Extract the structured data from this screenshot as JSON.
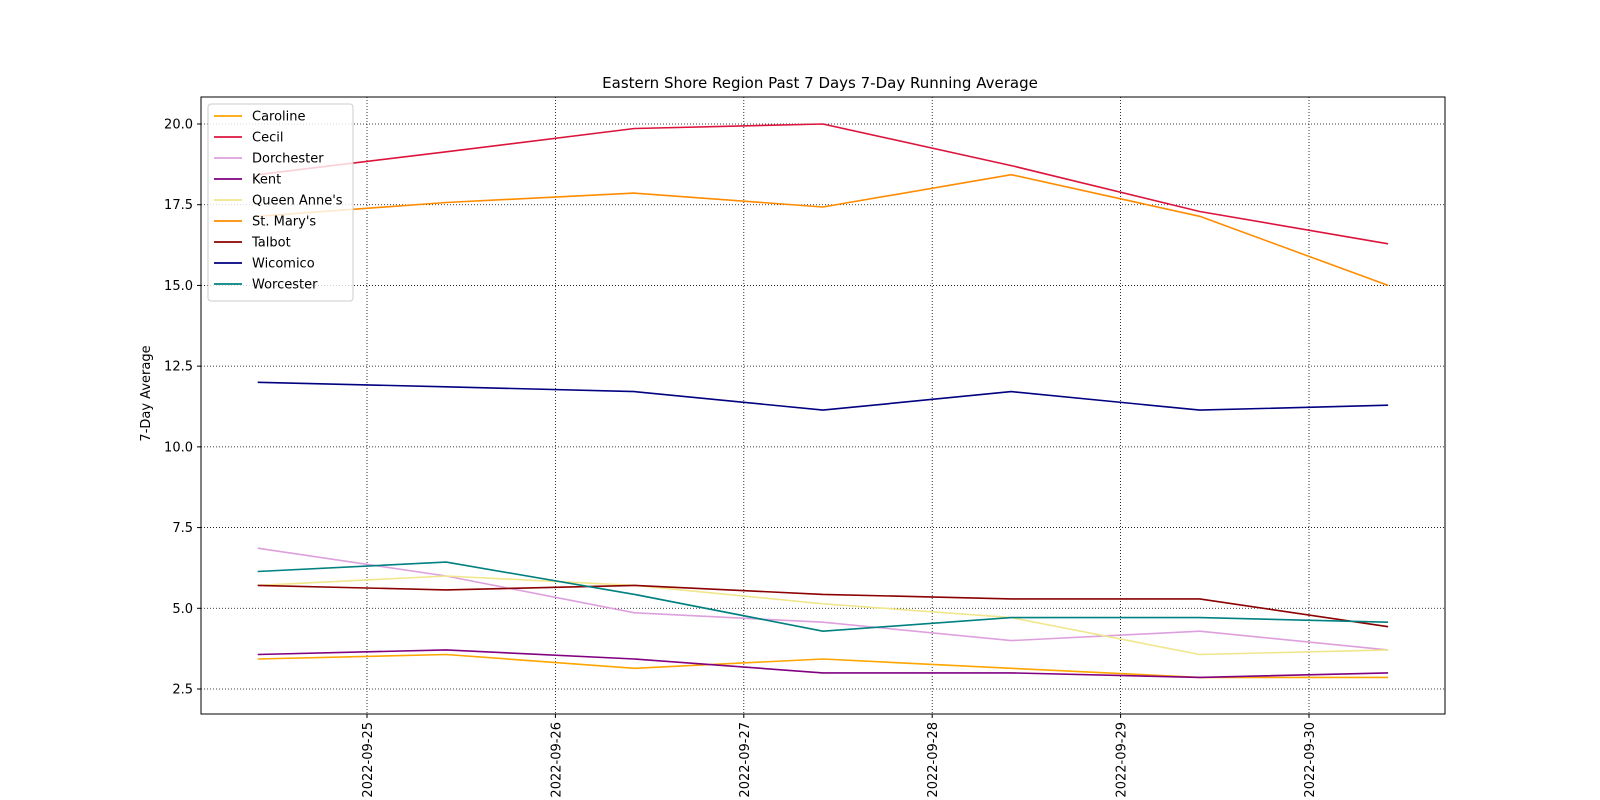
{
  "chart_data": {
    "type": "line",
    "title": "Eastern Shore Region Past 7 Days 7-Day Running Average",
    "xlabel": "",
    "ylabel": "7-Day Average",
    "x": [
      "2022-09-24",
      "2022-09-25",
      "2022-09-26",
      "2022-09-27",
      "2022-09-28",
      "2022-09-29",
      "2022-09-30",
      "2022-10-01"
    ],
    "x_ticks": [
      "2022-09-25",
      "2022-09-26",
      "2022-09-27",
      "2022-09-28",
      "2022-09-29",
      "2022-09-30"
    ],
    "y_ticks": [
      "2.5",
      "5.0",
      "7.5",
      "10.0",
      "12.5",
      "15.0",
      "17.5",
      "20.0"
    ],
    "ylim": [
      1.7,
      20.9
    ],
    "grid": true,
    "legend_position": "upper-left",
    "series": [
      {
        "name": "Caroline",
        "color": "#ffa500",
        "values": [
          3.43,
          3.57,
          3.14,
          3.43,
          3.14,
          2.86,
          2.86,
          2.57
        ]
      },
      {
        "name": "Cecil",
        "color": "#dc143c",
        "values": [
          18.43,
          19.14,
          19.86,
          20.0,
          18.71,
          17.29,
          16.29,
          16.29
        ]
      },
      {
        "name": "Dorchester",
        "color": "#dda0dd",
        "values": [
          6.86,
          6.0,
          4.86,
          4.57,
          4.0,
          4.29,
          3.71,
          3.71
        ]
      },
      {
        "name": "Kent",
        "color": "#800080",
        "values": [
          3.57,
          3.71,
          3.43,
          3.0,
          3.0,
          2.86,
          3.0,
          3.0
        ]
      },
      {
        "name": "Queen Anne's",
        "color": "#f0e68c",
        "values": [
          5.71,
          6.0,
          5.71,
          5.14,
          4.71,
          3.57,
          3.71,
          3.71
        ]
      },
      {
        "name": "St. Mary's",
        "color": "#ff8c00",
        "values": [
          17.14,
          17.57,
          17.86,
          17.43,
          18.43,
          17.14,
          15.0,
          15.0
        ]
      },
      {
        "name": "Talbot",
        "color": "#8b0000",
        "values": [
          5.71,
          5.57,
          5.71,
          5.43,
          5.29,
          5.29,
          4.43,
          4.43
        ]
      },
      {
        "name": "Wicomico",
        "color": "#000080",
        "values": [
          12.0,
          11.86,
          11.71,
          11.14,
          11.71,
          11.14,
          11.29,
          11.29
        ]
      },
      {
        "name": "Worcester",
        "color": "#008080",
        "values": [
          6.14,
          6.43,
          5.43,
          4.29,
          4.71,
          4.71,
          4.57,
          4.57
        ]
      }
    ]
  }
}
